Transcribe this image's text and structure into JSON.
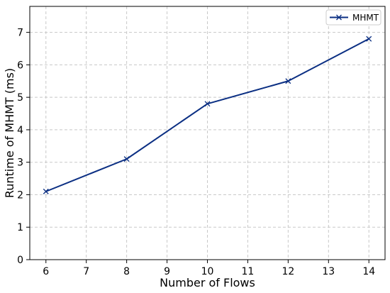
{
  "chart_data": {
    "type": "line",
    "title": "",
    "xlabel": "Number of Flows",
    "ylabel": "Runtime of MHMT (ms)",
    "xlim": [
      5.6,
      14.4
    ],
    "ylim": [
      0,
      7.8
    ],
    "xticks": [
      6,
      7,
      8,
      9,
      10,
      11,
      12,
      13,
      14
    ],
    "yticks": [
      0,
      1,
      2,
      3,
      4,
      5,
      6,
      7
    ],
    "grid": true,
    "legend_position": "top-right",
    "series": [
      {
        "name": "MHMT",
        "color": "#0b2f83",
        "marker": "x",
        "x": [
          6,
          8,
          10,
          12,
          14
        ],
        "y": [
          2.1,
          3.1,
          4.8,
          5.5,
          6.8
        ]
      }
    ]
  }
}
